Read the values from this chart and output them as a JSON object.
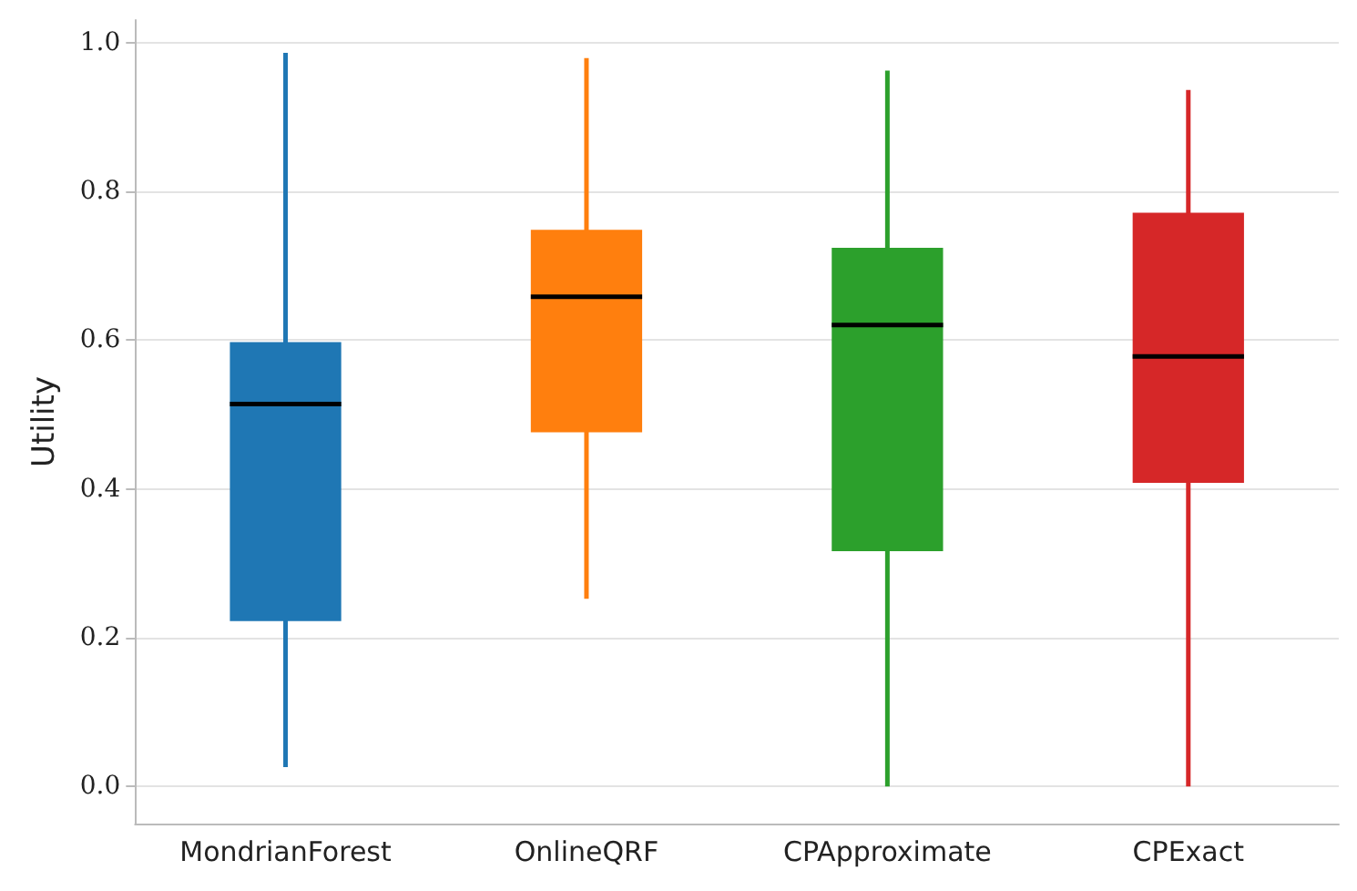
{
  "chart_data": {
    "type": "box",
    "ylabel": "Utility",
    "categories": [
      "MondrianForest",
      "OnlineQRF",
      "CPApproximate",
      "CPExact"
    ],
    "colors": [
      "#1f77b4",
      "#ff7f0e",
      "#2ca02c",
      "#d62728"
    ],
    "boxes": [
      {
        "low": 0.026,
        "q1": 0.222,
        "median": 0.514,
        "q3": 0.597,
        "high": 0.986
      },
      {
        "low": 0.252,
        "q1": 0.476,
        "median": 0.658,
        "q3": 0.748,
        "high": 0.979
      },
      {
        "low": 0.0,
        "q1": 0.316,
        "median": 0.62,
        "q3": 0.724,
        "high": 0.962
      },
      {
        "low": 0.0,
        "q1": 0.408,
        "median": 0.578,
        "q3": 0.771,
        "high": 0.936
      }
    ],
    "ylim": [
      -0.05,
      1.03
    ],
    "yticks": [
      {
        "value": 0,
        "label": "0.0"
      },
      {
        "value": 0.2,
        "label": "0.2"
      },
      {
        "value": 0.4,
        "label": "0.4"
      },
      {
        "value": 0.6,
        "label": "0.6"
      },
      {
        "value": 0.8,
        "label": "0.8"
      },
      {
        "value": 1,
        "label": "1.0"
      }
    ],
    "grid": "y"
  }
}
